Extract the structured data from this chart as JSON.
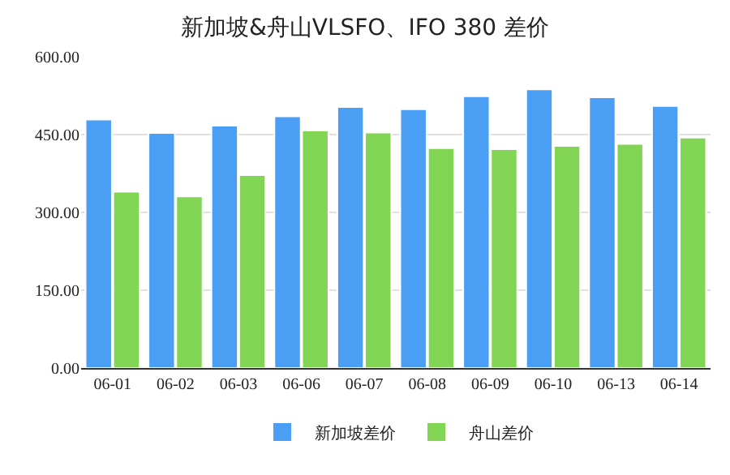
{
  "chart_data": {
    "type": "bar",
    "title": "新加坡&舟山VLSFO、IFO 380 差价",
    "categories": [
      "06-01",
      "06-02",
      "06-03",
      "06-06",
      "06-07",
      "06-08",
      "06-09",
      "06-10",
      "06-13",
      "06-14"
    ],
    "series": [
      {
        "name": "新加坡差价",
        "color": "#4a9ff5",
        "values": [
          479,
          453,
          467,
          485,
          503,
          499,
          524,
          537,
          522,
          505
        ]
      },
      {
        "name": "舟山差价",
        "color": "#81d454",
        "values": [
          340,
          331,
          372,
          458,
          454,
          424,
          422,
          428,
          432,
          444
        ]
      }
    ],
    "ylim": [
      0,
      600
    ],
    "yticks": [
      {
        "value": 0,
        "label": "0.00"
      },
      {
        "value": 150,
        "label": "150.00"
      },
      {
        "value": 300,
        "label": "300.00"
      },
      {
        "value": 450,
        "label": "450.00"
      },
      {
        "value": 600,
        "label": "600.00"
      }
    ],
    "grid": "y",
    "legend": "bottom"
  }
}
